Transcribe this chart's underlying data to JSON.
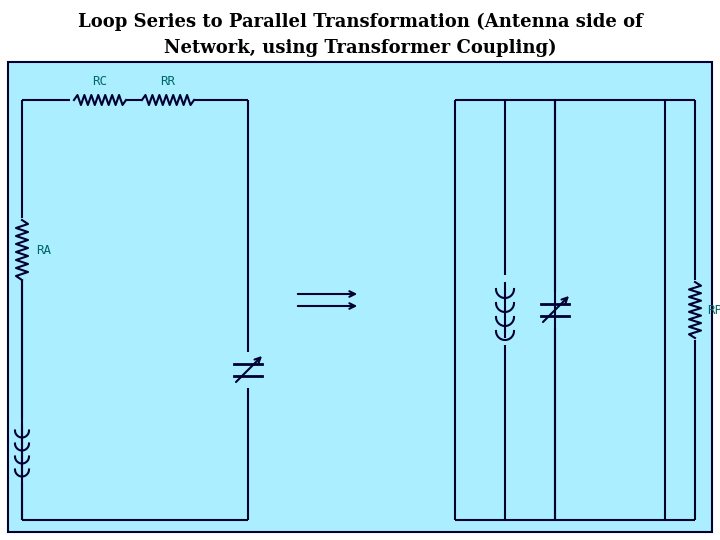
{
  "title_line1": "Loop Series to Parallel Transformation (Antenna side of",
  "title_line2": "Network, using Transformer Coupling)",
  "title_fontsize": 13,
  "bg_color": "#aaeeff",
  "line_color": "#000033",
  "text_color": "#006666",
  "label_RC": "RC",
  "label_RR": "RR",
  "label_RA": "RA",
  "label_RP": "RP",
  "fig_w": 7.2,
  "fig_h": 5.4,
  "dpi": 100
}
